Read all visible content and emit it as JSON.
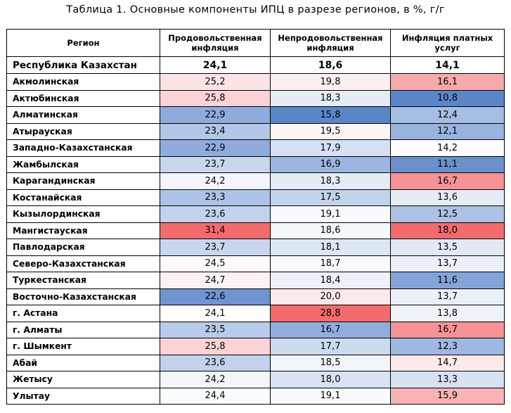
{
  "caption": "Таблица 1. Основные компоненты ИПЦ в разрезе регионов, в %, г/г",
  "headers": {
    "region": "Регион",
    "food": "Продовольственная инфляция",
    "nonfood": "Непродовольственная инфляция",
    "services": "Инфляция платных услуг"
  },
  "total": {
    "region": "Республика Казахстан",
    "food": "24,1",
    "nonfood": "18,6",
    "services": "14,1"
  },
  "rows": [
    {
      "region": "Акмолинская",
      "food": "25,2",
      "nonfood": "19,8",
      "services": "16,1",
      "food_bg": "#fce4e6",
      "nonfood_bg": "#fdeff0",
      "services_bg": "#f8a9ab"
    },
    {
      "region": "Актюбинская",
      "food": "25,8",
      "nonfood": "18,3",
      "services": "10,8",
      "food_bg": "#fbd3d6",
      "nonfood_bg": "#e6ecf6",
      "services_bg": "#5b86c9"
    },
    {
      "region": "Алматинская",
      "food": "22,9",
      "nonfood": "15,8",
      "services": "12,4",
      "food_bg": "#8facdd",
      "nonfood_bg": "#5a85c9",
      "services_bg": "#a6bde4"
    },
    {
      "region": "Атырауская",
      "food": "23,4",
      "nonfood": "19,5",
      "services": "12,1",
      "food_bg": "#b3c7e8",
      "nonfood_bg": "#fdf4f5",
      "services_bg": "#98b3df"
    },
    {
      "region": "Западно-Казахстанская",
      "food": "22,9",
      "nonfood": "17,9",
      "services": "14,2",
      "food_bg": "#8facdd",
      "nonfood_bg": "#d5e0f2",
      "services_bg": "#fefcfc"
    },
    {
      "region": "Жамбылская",
      "food": "23,7",
      "nonfood": "16,9",
      "services": "11,1",
      "food_bg": "#c9d7ee",
      "nonfood_bg": "#9db6e1",
      "services_bg": "#6a91cd"
    },
    {
      "region": "Карагандинская",
      "food": "24,2",
      "nonfood": "18,3",
      "services": "16,7",
      "food_bg": "#f2f5fb",
      "nonfood_bg": "#e6ecf6",
      "services_bg": "#f79396"
    },
    {
      "region": "Костанайская",
      "food": "23,3",
      "nonfood": "17,5",
      "services": "13,6",
      "food_bg": "#acc2e6",
      "nonfood_bg": "#c3d3ec",
      "services_bg": "#e6ecf6"
    },
    {
      "region": "Кызылординская",
      "food": "23,6",
      "nonfood": "19,1",
      "services": "12,5",
      "food_bg": "#c2d2ec",
      "nonfood_bg": "#f8fafd",
      "services_bg": "#abc1e5"
    },
    {
      "region": "Мангистауская",
      "food": "31,4",
      "nonfood": "18,6",
      "services": "18,0",
      "food_bg": "#f46b6e",
      "nonfood_bg": "#f6f8fc",
      "services_bg": "#f46b6e"
    },
    {
      "region": "Павлодарская",
      "food": "23,7",
      "nonfood": "18,1",
      "services": "13,5",
      "food_bg": "#c9d7ee",
      "nonfood_bg": "#dde6f4",
      "services_bg": "#e1e9f5"
    },
    {
      "region": "Северо-Казахстанская",
      "food": "24,5",
      "nonfood": "18,7",
      "services": "13,7",
      "food_bg": "#fefafb",
      "nonfood_bg": "#f8fafd",
      "services_bg": "#eaeff8"
    },
    {
      "region": "Туркестанская",
      "food": "24,7",
      "nonfood": "18,4",
      "services": "11,6",
      "food_bg": "#fdf2f3",
      "nonfood_bg": "#ecf1f9",
      "services_bg": "#83a4d9"
    },
    {
      "region": "Восточно-Казахстанская",
      "food": "22,6",
      "nonfood": "20,0",
      "services": "13,7",
      "food_bg": "#6f94cf",
      "nonfood_bg": "#fde8ea",
      "services_bg": "#eaeff8"
    },
    {
      "region": "г. Астана",
      "food": "24,1",
      "nonfood": "28,8",
      "services": "13,8",
      "food_bg": "#ffffff",
      "nonfood_bg": "#f46b6e",
      "services_bg": "#eef2f9"
    },
    {
      "region": "г. Алматы",
      "food": "23,5",
      "nonfood": "16,7",
      "services": "16,7",
      "food_bg": "#b9cbea",
      "nonfood_bg": "#91aede",
      "services_bg": "#f79396"
    },
    {
      "region": "г. Шымкент",
      "food": "25,8",
      "nonfood": "17,7",
      "services": "12,3",
      "food_bg": "#fbd3d6",
      "nonfood_bg": "#ccdaef",
      "services_bg": "#a0b9e2"
    },
    {
      "region": "Абай",
      "food": "23,6",
      "nonfood": "18,5",
      "services": "14,7",
      "food_bg": "#c2d2ec",
      "nonfood_bg": "#f1f4fa",
      "services_bg": "#fde8ea"
    },
    {
      "region": "Жетысу",
      "food": "24,2",
      "nonfood": "18,0",
      "services": "13,3",
      "food_bg": "#f2f5fb",
      "nonfood_bg": "#d9e3f3",
      "services_bg": "#d7e1f2"
    },
    {
      "region": "Улытау",
      "food": "24,4",
      "nonfood": "19,1",
      "services": "15,9",
      "food_bg": "#fbfcfe",
      "nonfood_bg": "#f8fafd",
      "services_bg": "#f9b3b5"
    }
  ]
}
